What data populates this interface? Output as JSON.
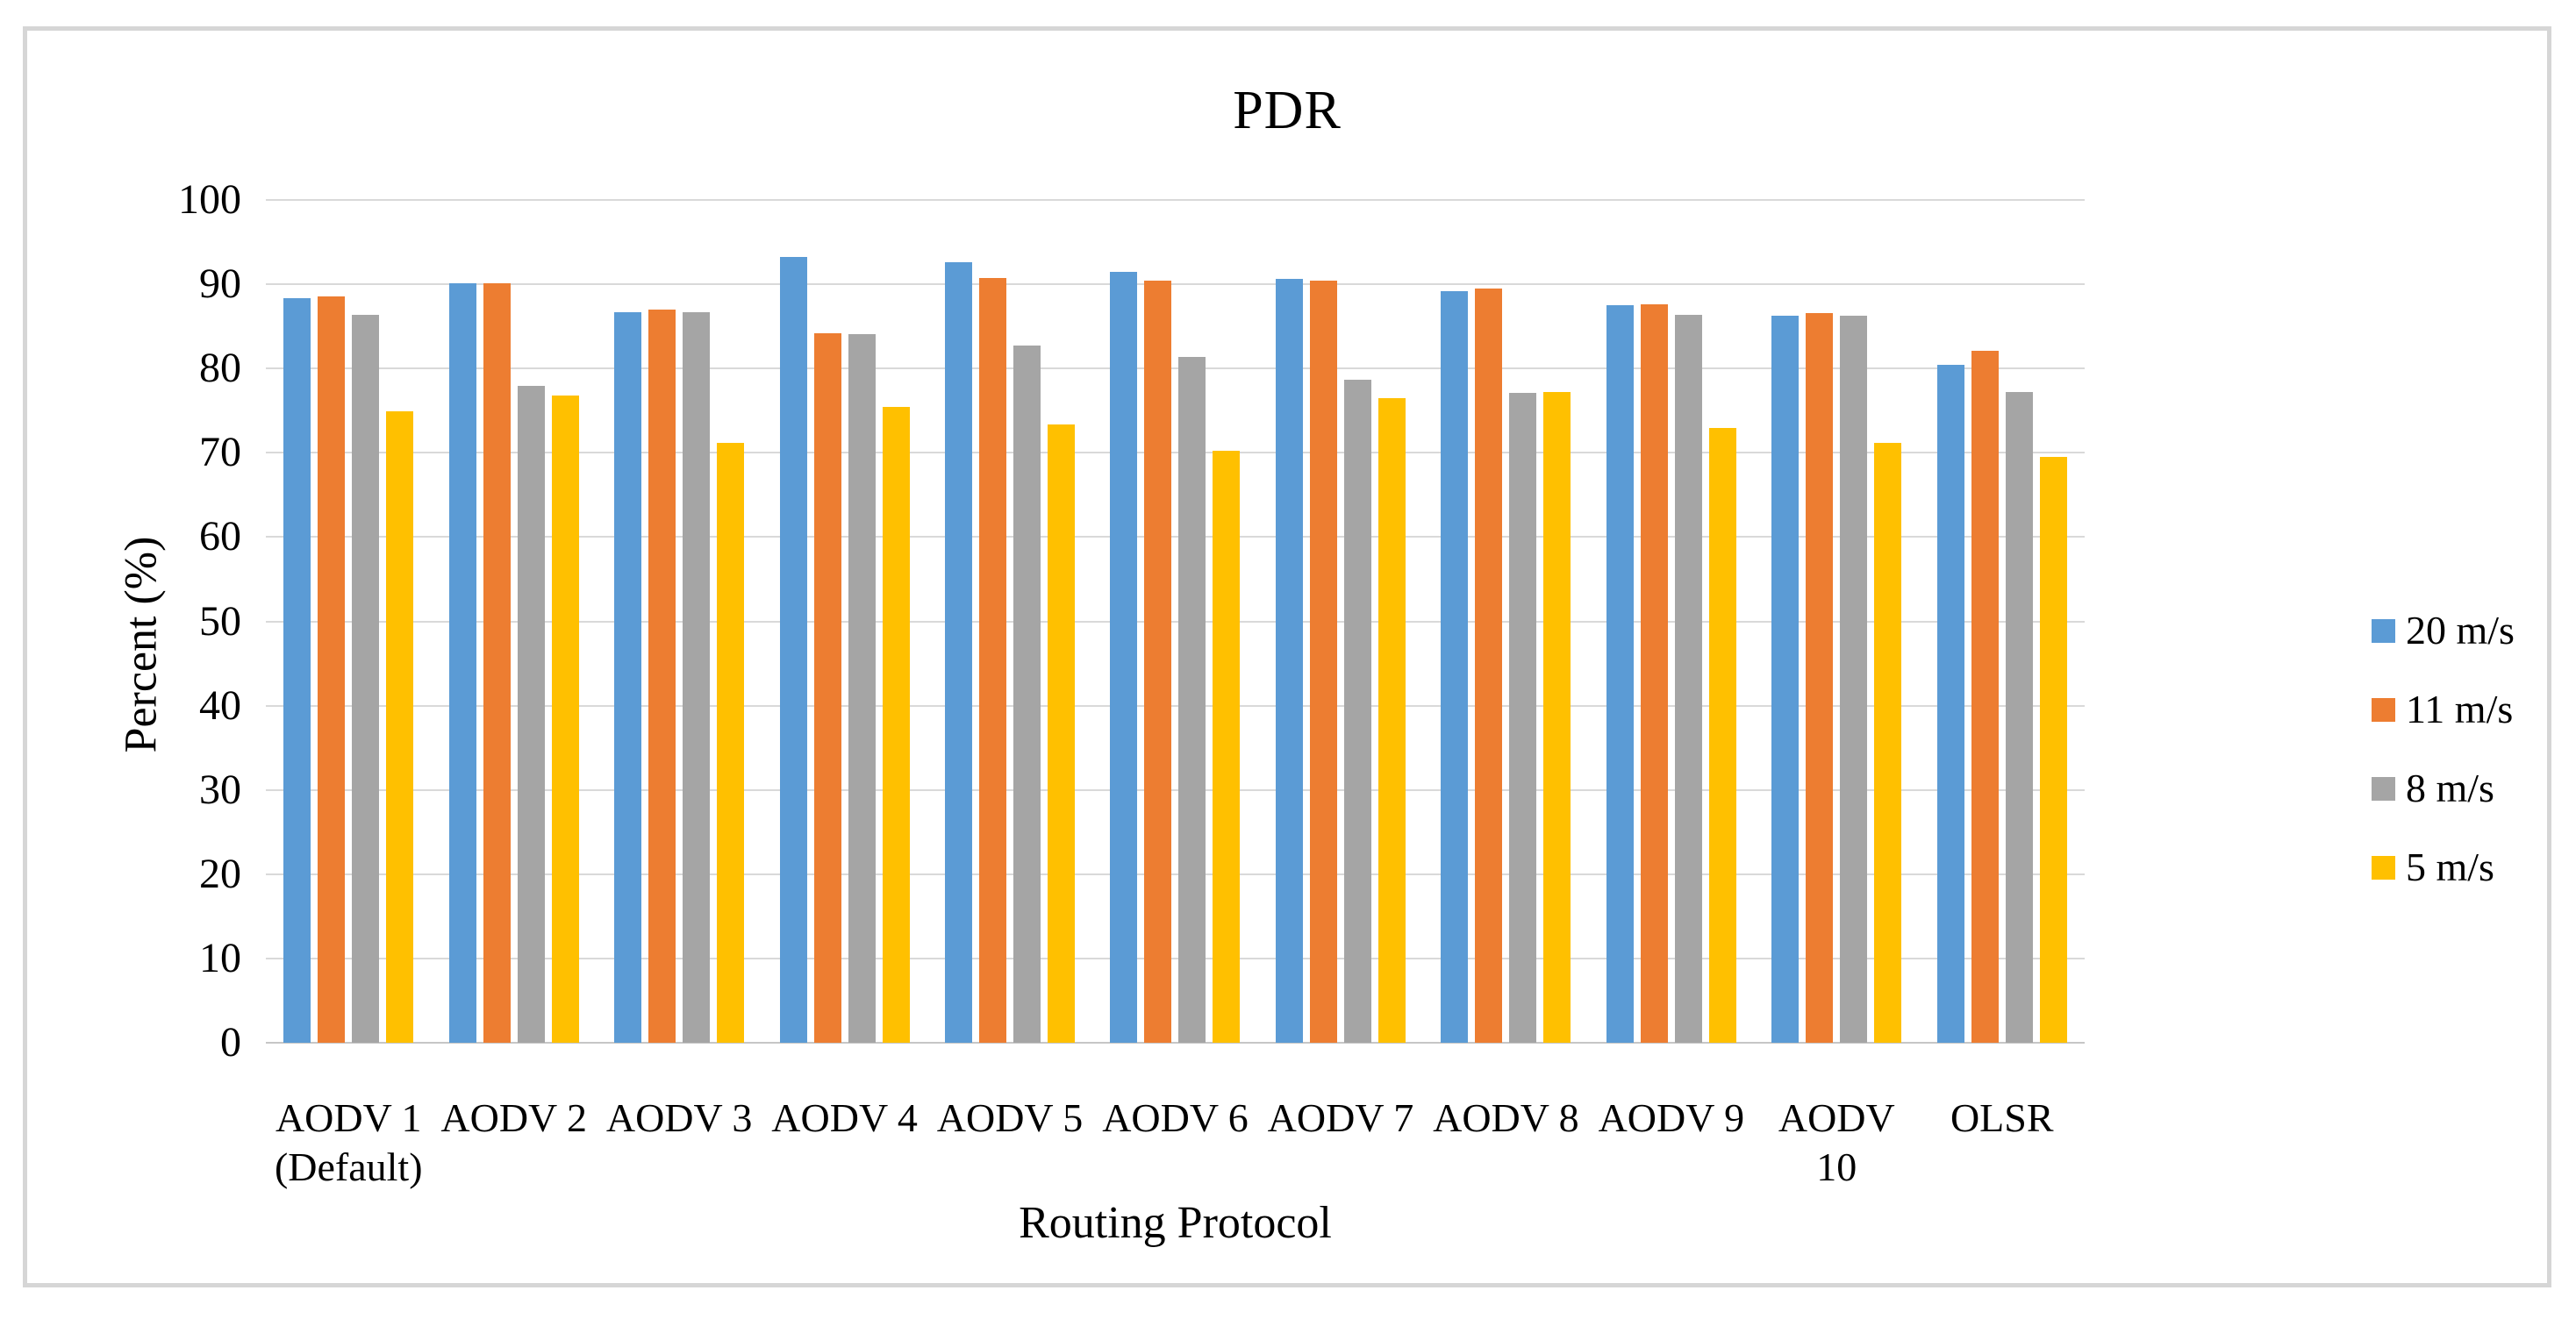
{
  "chart_data": {
    "type": "bar",
    "title": "PDR",
    "xlabel": "Routing Protocol",
    "ylabel": "Percent (%)",
    "ylim": [
      0,
      100
    ],
    "ytick_step": 10,
    "grid": true,
    "legend_position": "right",
    "categories": [
      {
        "label": "AODV 1",
        "sublabel": "(Default)"
      },
      {
        "label": "AODV 2",
        "sublabel": ""
      },
      {
        "label": "AODV 3",
        "sublabel": ""
      },
      {
        "label": "AODV 4",
        "sublabel": ""
      },
      {
        "label": "AODV 5",
        "sublabel": ""
      },
      {
        "label": "AODV 6",
        "sublabel": ""
      },
      {
        "label": "AODV 7",
        "sublabel": ""
      },
      {
        "label": "AODV 8",
        "sublabel": ""
      },
      {
        "label": "AODV 9",
        "sublabel": ""
      },
      {
        "label": "AODV 10",
        "sublabel": ""
      },
      {
        "label": "OLSR",
        "sublabel": ""
      }
    ],
    "series": [
      {
        "name": "20 m/s",
        "color": "#5B9BD5",
        "values": [
          88.3,
          90.1,
          86.7,
          93.2,
          92.6,
          91.5,
          90.6,
          89.2,
          87.5,
          86.3,
          80.4
        ]
      },
      {
        "name": "11 m/s",
        "color": "#ED7D31",
        "values": [
          88.6,
          90.1,
          87.0,
          84.2,
          90.7,
          90.4,
          90.4,
          89.5,
          87.6,
          86.6,
          82.1
        ]
      },
      {
        "name": "8 m/s",
        "color": "#A5A5A5",
        "values": [
          86.4,
          77.9,
          86.7,
          84.1,
          82.7,
          81.4,
          78.7,
          77.1,
          86.4,
          86.3,
          77.2
        ]
      },
      {
        "name": "5 m/s",
        "color": "#FFC000",
        "values": [
          74.9,
          76.8,
          71.2,
          75.4,
          73.4,
          70.2,
          76.5,
          77.2,
          72.9,
          71.2,
          69.5
        ]
      }
    ]
  }
}
